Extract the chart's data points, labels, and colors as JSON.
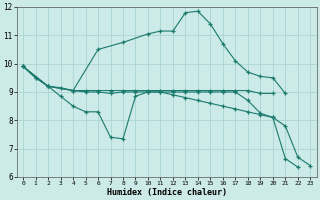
{
  "bg_color": "#cceae7",
  "grid_color": "#aad4d0",
  "line_color": "#1a7a6e",
  "xlabel": "Humidex (Indice chaleur)",
  "xlim": [
    -0.5,
    23.5
  ],
  "ylim": [
    6,
    12
  ],
  "xticks": [
    0,
    1,
    2,
    3,
    4,
    5,
    6,
    7,
    8,
    9,
    10,
    11,
    12,
    13,
    14,
    15,
    16,
    17,
    18,
    19,
    20,
    21,
    22,
    23
  ],
  "yticks": [
    6,
    7,
    8,
    9,
    10,
    11,
    12
  ],
  "series": [
    {
      "x": [
        0,
        1,
        2,
        3,
        4,
        5,
        6,
        7,
        8,
        9,
        10,
        11,
        12,
        13,
        14,
        15,
        16,
        17,
        18,
        19,
        20
      ],
      "y": [
        9.9,
        9.5,
        9.2,
        9.15,
        9.05,
        9.05,
        9.05,
        9.05,
        9.05,
        9.05,
        9.05,
        9.05,
        9.05,
        9.05,
        9.05,
        9.05,
        9.05,
        9.05,
        9.05,
        8.95,
        8.95
      ]
    },
    {
      "x": [
        0,
        1,
        2,
        3,
        4,
        5,
        6,
        7,
        8,
        9,
        10,
        11,
        12,
        13,
        14,
        15,
        16,
        17,
        18,
        19,
        20,
        21,
        22
      ],
      "y": [
        9.9,
        9.5,
        9.2,
        8.85,
        8.5,
        8.3,
        8.3,
        7.4,
        7.35,
        8.85,
        9.0,
        9.0,
        9.0,
        9.0,
        9.0,
        9.0,
        9.0,
        9.0,
        8.7,
        8.25,
        8.1,
        6.65,
        6.35
      ]
    },
    {
      "x": [
        0,
        2,
        4,
        6,
        8,
        10,
        11,
        12,
        13,
        14,
        15,
        16,
        17,
        18,
        19,
        20,
        21
      ],
      "y": [
        9.9,
        9.2,
        9.05,
        10.5,
        10.75,
        11.05,
        11.15,
        11.15,
        11.8,
        11.85,
        11.4,
        10.7,
        10.1,
        9.7,
        9.55,
        9.5,
        8.95
      ]
    },
    {
      "x": [
        0,
        2,
        4,
        5,
        6,
        7,
        8,
        9,
        10,
        11,
        12,
        13,
        14,
        15,
        16,
        17,
        18,
        19,
        20,
        21,
        22,
        23
      ],
      "y": [
        9.9,
        9.2,
        9.05,
        9.0,
        9.0,
        8.95,
        9.0,
        9.0,
        9.0,
        9.0,
        8.9,
        8.8,
        8.7,
        8.6,
        8.5,
        8.4,
        8.3,
        8.2,
        8.1,
        7.8,
        6.7,
        6.4
      ]
    }
  ]
}
